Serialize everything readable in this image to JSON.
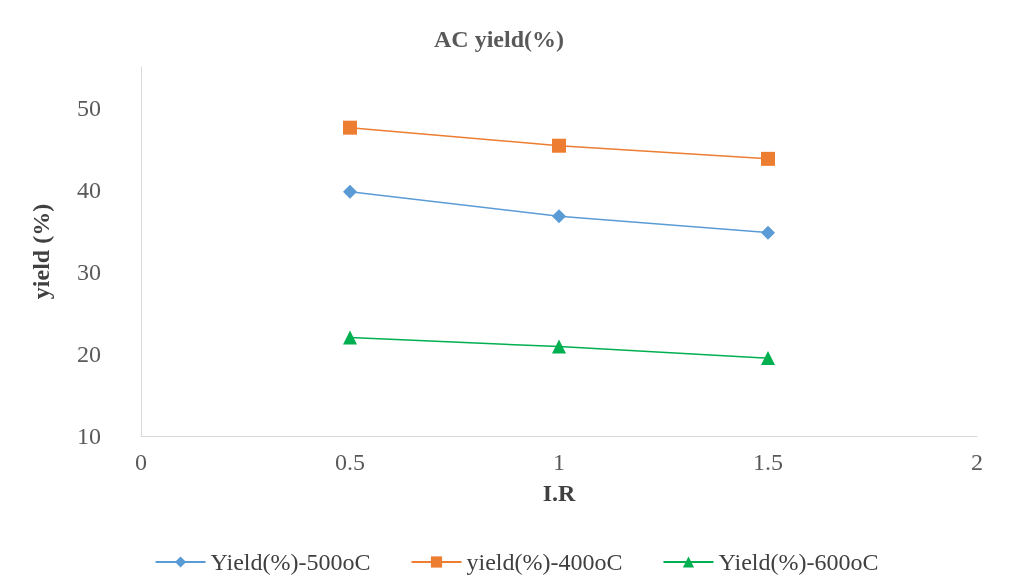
{
  "chart_data": {
    "type": "line",
    "title": "AC yield(%)",
    "xlabel": "I.R",
    "ylabel": "yield (%)",
    "x": [
      0.5,
      1,
      1.5
    ],
    "series": [
      {
        "name": "Yield(%)-500oC",
        "color": "#5b9bd5",
        "marker": "diamond",
        "values": [
          39.8,
          36.8,
          34.8
        ]
      },
      {
        "name": "yield(%)-400oC",
        "color": "#ed7d31",
        "marker": "square",
        "values": [
          47.6,
          45.4,
          43.8
        ]
      },
      {
        "name": "Yield(%)-600oC",
        "color": "#00b050",
        "marker": "triangle",
        "values": [
          22.0,
          20.9,
          19.5
        ]
      }
    ],
    "xlim": [
      0,
      2
    ],
    "xticks": [
      0,
      0.5,
      1,
      1.5,
      2
    ],
    "ylim": [
      10,
      55
    ],
    "yticks": [
      10,
      20,
      30,
      40,
      50
    ],
    "grid": false,
    "legend": "bottom",
    "line_style": "solid"
  }
}
